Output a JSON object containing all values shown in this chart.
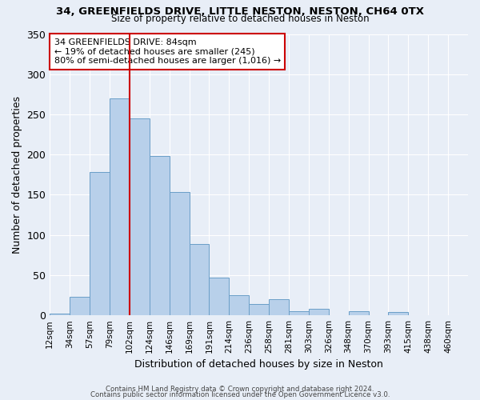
{
  "title": "34, GREENFIELDS DRIVE, LITTLE NESTON, NESTON, CH64 0TX",
  "subtitle": "Size of property relative to detached houses in Neston",
  "xlabel": "Distribution of detached houses by size in Neston",
  "ylabel": "Number of detached properties",
  "bar_color": "#b8d0ea",
  "bar_edge_color": "#6a9fc8",
  "background_color": "#e8eef7",
  "grid_color": "#ffffff",
  "vline_bin_index": 3.5,
  "vline_color": "#cc0000",
  "annotation_text": "34 GREENFIELDS DRIVE: 84sqm\n← 19% of detached houses are smaller (245)\n80% of semi-detached houses are larger (1,016) →",
  "annotation_box_edge_color": "#cc0000",
  "bar_heights": [
    2,
    23,
    178,
    270,
    245,
    198,
    153,
    89,
    47,
    25,
    14,
    20,
    5,
    8,
    0,
    5,
    0,
    4,
    0,
    0
  ],
  "xtick_labels": [
    "12sqm",
    "34sqm",
    "57sqm",
    "79sqm",
    "102sqm",
    "124sqm",
    "146sqm",
    "169sqm",
    "191sqm",
    "214sqm",
    "236sqm",
    "258sqm",
    "281sqm",
    "303sqm",
    "326sqm",
    "348sqm",
    "370sqm",
    "393sqm",
    "415sqm",
    "438sqm",
    "460sqm"
  ],
  "ylim": [
    0,
    350
  ],
  "yticks": [
    0,
    50,
    100,
    150,
    200,
    250,
    300,
    350
  ],
  "footer1": "Contains HM Land Registry data © Crown copyright and database right 2024.",
  "footer2": "Contains public sector information licensed under the Open Government Licence v3.0."
}
